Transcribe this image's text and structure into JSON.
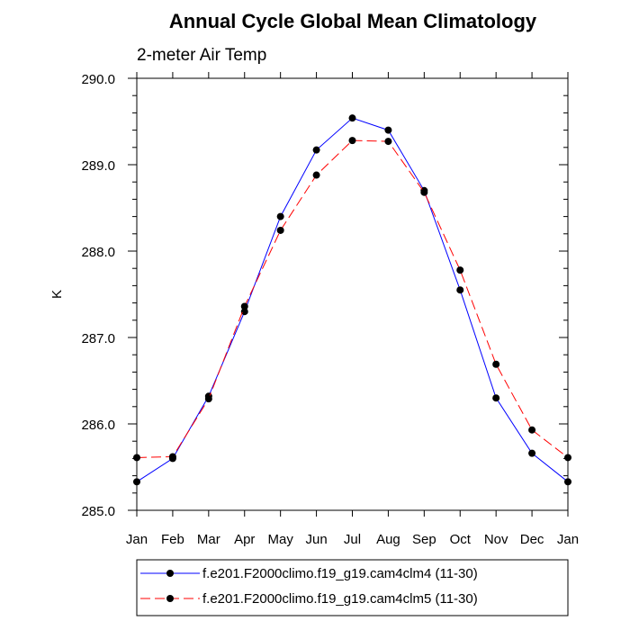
{
  "chart_data": {
    "type": "line",
    "title": "Annual Cycle Global Mean Climatology",
    "subtitle": "2-meter Air Temp",
    "xlabel": "",
    "ylabel": "K",
    "categories": [
      "Jan",
      "Feb",
      "Mar",
      "Apr",
      "May",
      "Jun",
      "Jul",
      "Aug",
      "Sep",
      "Oct",
      "Nov",
      "Dec",
      "Jan"
    ],
    "ylim": [
      285.0,
      290.0
    ],
    "yticks": [
      "285.0",
      "286.0",
      "287.0",
      "288.0",
      "289.0",
      "290.0"
    ],
    "grid": false,
    "legend_position": "bottom",
    "series": [
      {
        "name": "f.e201.F2000climo.f19_g19.cam4clm4 (11-30)",
        "color": "#0000ff",
        "line_style": "solid",
        "marker": "filled-circle",
        "values": [
          285.33,
          285.6,
          286.32,
          287.3,
          288.4,
          289.17,
          289.54,
          289.4,
          288.7,
          287.55,
          286.3,
          285.66,
          285.33
        ]
      },
      {
        "name": "f.e201.F2000climo.f19_g19.cam4clm5 (11-30)",
        "color": "#ff0000",
        "line_style": "dashed",
        "marker": "filled-circle",
        "values": [
          285.61,
          285.62,
          286.29,
          287.36,
          288.24,
          288.88,
          289.28,
          289.27,
          288.68,
          287.78,
          286.69,
          285.93,
          285.61
        ]
      }
    ]
  }
}
